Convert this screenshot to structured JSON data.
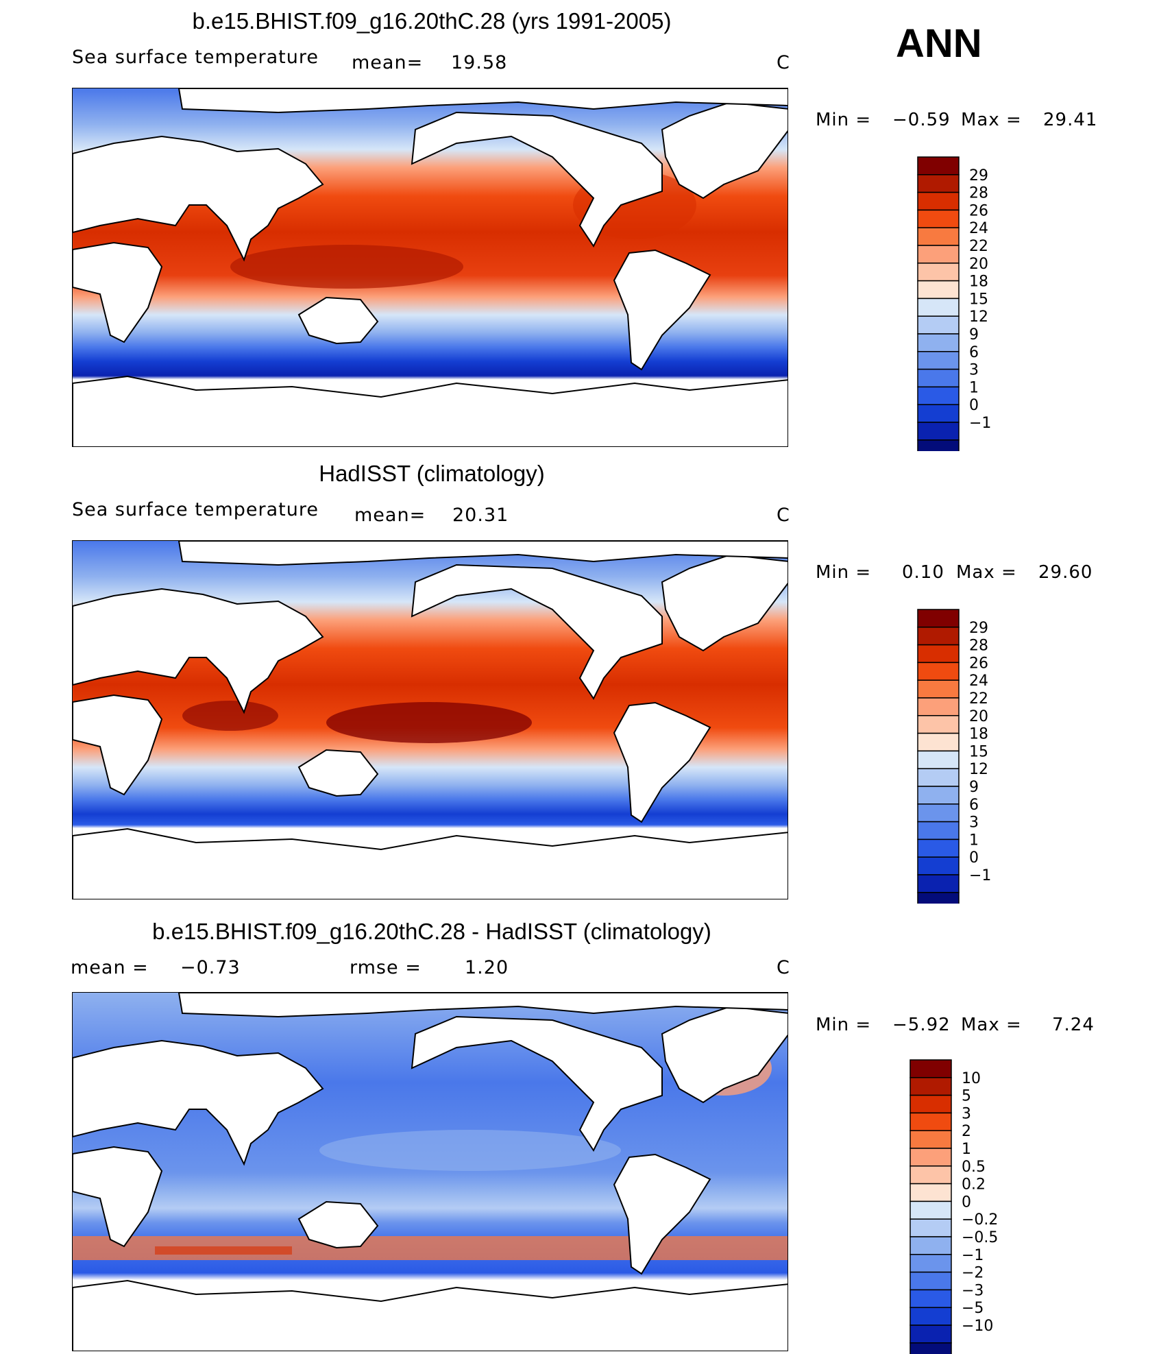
{
  "season": "ANN",
  "panels": [
    {
      "title": "b.e15.BHIST.f09_g16.20thC.28 (yrs 1991-2005)",
      "variable": "Sea surface temperature",
      "stat1_label": "mean=",
      "stat1_value": "19.58",
      "stat2_label": "",
      "stat2_value": "",
      "units": "C",
      "min_label": "Min =",
      "min_value": "−0.59",
      "max_label": "Max =",
      "max_value": "29.41",
      "colorbar_labels": [
        "29",
        "28",
        "26",
        "24",
        "22",
        "20",
        "18",
        "15",
        "12",
        "9",
        "6",
        "3",
        "1",
        "0",
        "−1"
      ],
      "colorbar_colors": [
        "#800000",
        "#b01a00",
        "#d82e00",
        "#f04b10",
        "#f87a40",
        "#fca07a",
        "#fdc4a8",
        "#fde3d2",
        "#d6e6f8",
        "#b4ccf4",
        "#8fb1ef",
        "#6b94ec",
        "#4a78ea",
        "#2a5ae6",
        "#143ed2",
        "#0a22b0",
        "#030c7a"
      ]
    },
    {
      "title": "HadISST (climatology)",
      "variable": "Sea surface temperature",
      "stat1_label": "mean=",
      "stat1_value": "20.31",
      "stat2_label": "",
      "stat2_value": "",
      "units": "C",
      "min_label": "Min =",
      "min_value": "0.10",
      "max_label": "Max =",
      "max_value": "29.60",
      "colorbar_labels": [
        "29",
        "28",
        "26",
        "24",
        "22",
        "20",
        "18",
        "15",
        "12",
        "9",
        "6",
        "3",
        "1",
        "0",
        "−1"
      ],
      "colorbar_colors": [
        "#800000",
        "#b01a00",
        "#d82e00",
        "#f04b10",
        "#f87a40",
        "#fca07a",
        "#fdc4a8",
        "#fde3d2",
        "#d6e6f8",
        "#b4ccf4",
        "#8fb1ef",
        "#6b94ec",
        "#4a78ea",
        "#2a5ae6",
        "#143ed2",
        "#0a22b0",
        "#030c7a"
      ]
    },
    {
      "title": "b.e15.BHIST.f09_g16.20thC.28 - HadISST (climatology)",
      "variable": "",
      "stat1_label": "mean =",
      "stat1_value": "−0.73",
      "stat2_label": "rmse =",
      "stat2_value": "1.20",
      "units": "C",
      "min_label": "Min =",
      "min_value": "−5.92",
      "max_label": "Max =",
      "max_value": "7.24",
      "colorbar_labels": [
        "10",
        "5",
        "3",
        "2",
        "1",
        "0.5",
        "0.2",
        "0",
        "−0.2",
        "−0.5",
        "−1",
        "−2",
        "−3",
        "−5",
        "−10"
      ],
      "colorbar_colors": [
        "#800000",
        "#b01a00",
        "#d82e00",
        "#f04b10",
        "#f87a40",
        "#fca07a",
        "#fdc4a8",
        "#fde3d2",
        "#d6e6f8",
        "#b4ccf4",
        "#8fb1ef",
        "#6b94ec",
        "#4a78ea",
        "#2a5ae6",
        "#143ed2",
        "#0a22b0",
        "#030c7a"
      ]
    }
  ]
}
